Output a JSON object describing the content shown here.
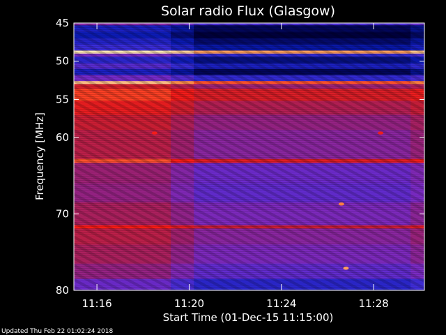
{
  "chart_data": {
    "type": "heatmap",
    "title": "Solar radio Flux (Glasgow)",
    "xlabel": "Start Time (01-Dec-15 11:15:00)",
    "ylabel": "Frequency [MHz]",
    "x_unit": "minutes after 11:00",
    "xlim": [
      15.0,
      30.2
    ],
    "ylim": [
      45,
      80
    ],
    "y_inverted": true,
    "grid": false,
    "x_ticks": [
      {
        "value": 16,
        "label": "11:16"
      },
      {
        "value": 20,
        "label": "11:20"
      },
      {
        "value": 24,
        "label": "11:24"
      },
      {
        "value": 28,
        "label": "11:28"
      }
    ],
    "y_ticks": [
      {
        "value": 45,
        "label": "45"
      },
      {
        "value": 50,
        "label": "50"
      },
      {
        "value": 55,
        "label": "55"
      },
      {
        "value": 60,
        "label": "60"
      },
      {
        "value": 70,
        "label": "70"
      },
      {
        "value": 80,
        "label": "80"
      }
    ],
    "colormap": [
      "#00003c",
      "#0a1ab4",
      "#3a2cd8",
      "#782ac8",
      "#a0206e",
      "#d21e2c",
      "#ff1c14",
      "#ff8c46",
      "#ffe6b4"
    ],
    "frequency_bands": [
      {
        "from": 45.0,
        "to": 45.3,
        "level": 0.35
      },
      {
        "from": 45.3,
        "to": 46.2,
        "level": 0.1
      },
      {
        "from": 46.2,
        "to": 47.0,
        "level": 0.06
      },
      {
        "from": 47.0,
        "to": 47.8,
        "level": 0.12
      },
      {
        "from": 47.8,
        "to": 48.6,
        "level": 0.18
      },
      {
        "from": 48.6,
        "to": 49.0,
        "level": 0.97
      },
      {
        "from": 49.0,
        "to": 49.4,
        "level": 0.3
      },
      {
        "from": 49.4,
        "to": 50.3,
        "level": 0.14
      },
      {
        "from": 50.3,
        "to": 51.0,
        "level": 0.24
      },
      {
        "from": 51.0,
        "to": 51.8,
        "level": 0.1
      },
      {
        "from": 51.8,
        "to": 52.6,
        "level": 0.3
      },
      {
        "from": 52.6,
        "to": 53.0,
        "level": 0.88
      },
      {
        "from": 53.0,
        "to": 53.6,
        "level": 0.56
      },
      {
        "from": 53.6,
        "to": 55.2,
        "level": 0.72
      },
      {
        "from": 55.2,
        "to": 57.0,
        "level": 0.62
      },
      {
        "from": 57.0,
        "to": 59.0,
        "level": 0.54
      },
      {
        "from": 59.0,
        "to": 62.8,
        "level": 0.5
      },
      {
        "from": 62.8,
        "to": 63.3,
        "level": 0.74
      },
      {
        "from": 63.3,
        "to": 66.0,
        "level": 0.42
      },
      {
        "from": 66.0,
        "to": 68.5,
        "level": 0.4
      },
      {
        "from": 68.5,
        "to": 71.5,
        "level": 0.46
      },
      {
        "from": 71.5,
        "to": 71.9,
        "level": 0.68
      },
      {
        "from": 71.9,
        "to": 74.0,
        "level": 0.5
      },
      {
        "from": 74.0,
        "to": 76.5,
        "level": 0.46
      },
      {
        "from": 76.5,
        "to": 78.5,
        "level": 0.4
      },
      {
        "from": 78.5,
        "to": 80.0,
        "level": 0.28
      }
    ],
    "time_segments": [
      {
        "from": 15.0,
        "to": 19.2,
        "offset": 0.07
      },
      {
        "from": 19.2,
        "to": 20.2,
        "offset": 0.0
      },
      {
        "from": 20.2,
        "to": 29.6,
        "offset": -0.07
      },
      {
        "from": 29.6,
        "to": 30.2,
        "offset": -0.02
      }
    ],
    "bursts": [
      {
        "t": 18.5,
        "f": 59.4,
        "level": 0.72
      },
      {
        "t": 26.6,
        "f": 68.7,
        "level": 0.86
      },
      {
        "t": 26.8,
        "f": 77.1,
        "level": 0.9
      },
      {
        "t": 28.3,
        "f": 59.4,
        "level": 0.7
      }
    ]
  },
  "footer": {
    "updated": "Updated Thu Feb 22 01:02:24 2018"
  }
}
